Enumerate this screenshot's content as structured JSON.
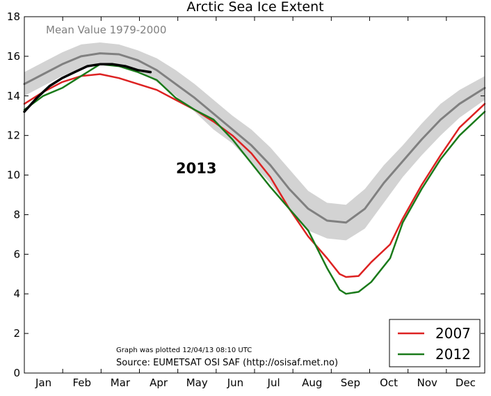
{
  "chart_data": {
    "type": "line",
    "title": "Arctic Sea Ice Extent",
    "xlabel": "",
    "ylabel": "",
    "ylim": [
      0,
      18
    ],
    "yticks": [
      0,
      2,
      4,
      6,
      8,
      10,
      12,
      14,
      16,
      18
    ],
    "xlim": [
      0,
      365
    ],
    "months": [
      "Jan",
      "Feb",
      "Mar",
      "Apr",
      "May",
      "Jun",
      "Jul",
      "Aug",
      "Sep",
      "Oct",
      "Nov",
      "Dec"
    ],
    "mean_label": "Mean Value 1979-2000",
    "year_label": "2013",
    "plotted_note": "Graph was plotted 12/04/13 08:10 UTC",
    "source_note": "Source: EUMETSAT OSI SAF (http://osisaf.met.no)",
    "legend_position": "lower-right",
    "colors": {
      "mean": "#808080",
      "band": "#d3d3d3",
      "y2007": "#dd2222",
      "y2012": "#1a7a1a",
      "y2013": "#000000"
    },
    "series": [
      {
        "name": "Mean Value 1979-2000",
        "x": [
          0,
          15,
          30,
          45,
          60,
          75,
          90,
          105,
          120,
          135,
          150,
          165,
          180,
          195,
          210,
          225,
          240,
          255,
          270,
          285,
          300,
          315,
          330,
          345,
          365
        ],
        "values": [
          14.6,
          15.1,
          15.6,
          16.0,
          16.15,
          16.1,
          15.8,
          15.3,
          14.6,
          13.9,
          13.1,
          12.3,
          11.5,
          10.5,
          9.3,
          8.3,
          7.7,
          7.6,
          8.3,
          9.6,
          10.7,
          11.8,
          12.8,
          13.6,
          14.4
        ]
      },
      {
        "name": "2007",
        "x": [
          0,
          15,
          30,
          45,
          60,
          75,
          90,
          105,
          120,
          135,
          150,
          165,
          180,
          195,
          210,
          225,
          240,
          250,
          255,
          265,
          275,
          290,
          300,
          315,
          330,
          345,
          365
        ],
        "values": [
          13.6,
          14.2,
          14.7,
          15.0,
          15.1,
          14.9,
          14.6,
          14.3,
          13.8,
          13.3,
          12.7,
          12.0,
          11.1,
          9.9,
          8.3,
          6.9,
          5.8,
          5.0,
          4.85,
          4.9,
          5.6,
          6.5,
          7.8,
          9.5,
          11.0,
          12.4,
          13.6
        ]
      },
      {
        "name": "2012",
        "x": [
          0,
          15,
          30,
          45,
          60,
          75,
          90,
          105,
          120,
          135,
          150,
          165,
          180,
          195,
          210,
          225,
          240,
          250,
          255,
          265,
          275,
          290,
          300,
          315,
          330,
          345,
          365
        ],
        "values": [
          13.3,
          14.0,
          14.4,
          15.0,
          15.6,
          15.5,
          15.2,
          14.8,
          13.9,
          13.3,
          12.8,
          11.8,
          10.6,
          9.4,
          8.3,
          7.2,
          5.3,
          4.2,
          4.0,
          4.1,
          4.6,
          5.8,
          7.6,
          9.3,
          10.8,
          12.0,
          13.2
        ]
      },
      {
        "name": "2013",
        "x": [
          0,
          10,
          20,
          30,
          40,
          50,
          60,
          70,
          80,
          90,
          100
        ],
        "values": [
          13.2,
          13.9,
          14.5,
          14.9,
          15.2,
          15.5,
          15.6,
          15.6,
          15.5,
          15.3,
          15.2
        ]
      }
    ],
    "band": {
      "name": "Mean Value 1979-2000",
      "x": [
        0,
        15,
        30,
        45,
        60,
        75,
        90,
        105,
        120,
        135,
        150,
        165,
        180,
        195,
        210,
        225,
        240,
        255,
        270,
        285,
        300,
        315,
        330,
        345,
        365
      ],
      "upper": [
        15.2,
        15.7,
        16.2,
        16.6,
        16.7,
        16.6,
        16.3,
        15.9,
        15.3,
        14.6,
        13.8,
        13.0,
        12.3,
        11.4,
        10.3,
        9.2,
        8.6,
        8.5,
        9.3,
        10.5,
        11.5,
        12.6,
        13.6,
        14.3,
        15.0
      ],
      "lower": [
        14.0,
        14.5,
        15.0,
        15.4,
        15.6,
        15.6,
        15.3,
        14.7,
        14.0,
        13.2,
        12.3,
        11.6,
        10.6,
        9.6,
        8.3,
        7.2,
        6.8,
        6.7,
        7.3,
        8.6,
        9.9,
        11.0,
        12.0,
        12.9,
        13.8
      ]
    },
    "legend": [
      "2007",
      "2012"
    ]
  }
}
